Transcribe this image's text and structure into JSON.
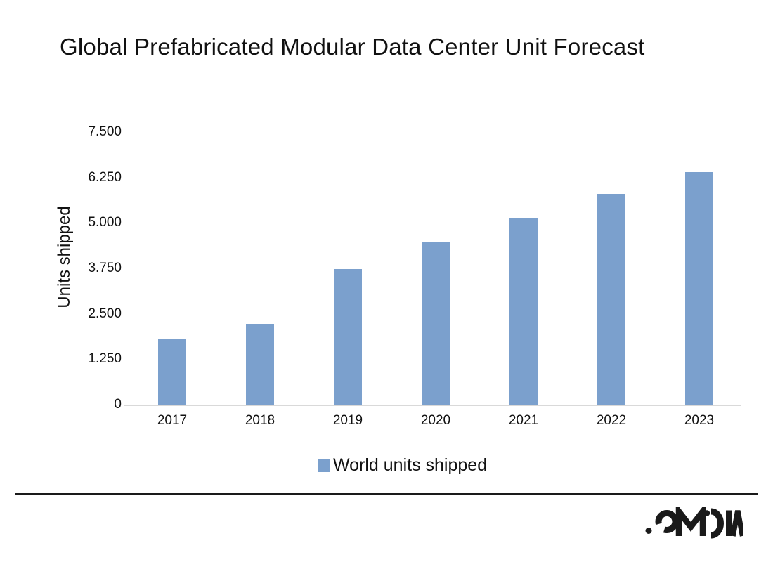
{
  "page": {
    "background": "#ffffff"
  },
  "chart_data": {
    "type": "bar",
    "title": "Global Prefabricated Modular Data Center Unit Forecast",
    "categories": [
      "2017",
      "2018",
      "2019",
      "2020",
      "2021",
      "2022",
      "2023"
    ],
    "values": [
      1800,
      2230,
      3740,
      4490,
      5150,
      5790,
      6400
    ],
    "series": [
      {
        "name": "World units shipped",
        "values": [
          1800,
          2230,
          3740,
          4490,
          5150,
          5790,
          6400
        ]
      }
    ],
    "xlabel": "",
    "ylabel": "Units shipped",
    "ylim": [
      0,
      7500
    ],
    "y_ticks": [
      "0",
      "1.250",
      "2.500",
      "3.750",
      "5.000",
      "6.250",
      "7.500"
    ],
    "grid": false,
    "legend": {
      "position": "bottom",
      "items": [
        {
          "label": "World units shipped",
          "color": "#7ba0cd"
        }
      ]
    },
    "bar_color": "#7ba0cd",
    "axis_line_color": "#d9d9d9",
    "text_color": "#111111"
  },
  "footer": {
    "brand": "OMDIA",
    "brand_color": "#1a1a1a"
  }
}
